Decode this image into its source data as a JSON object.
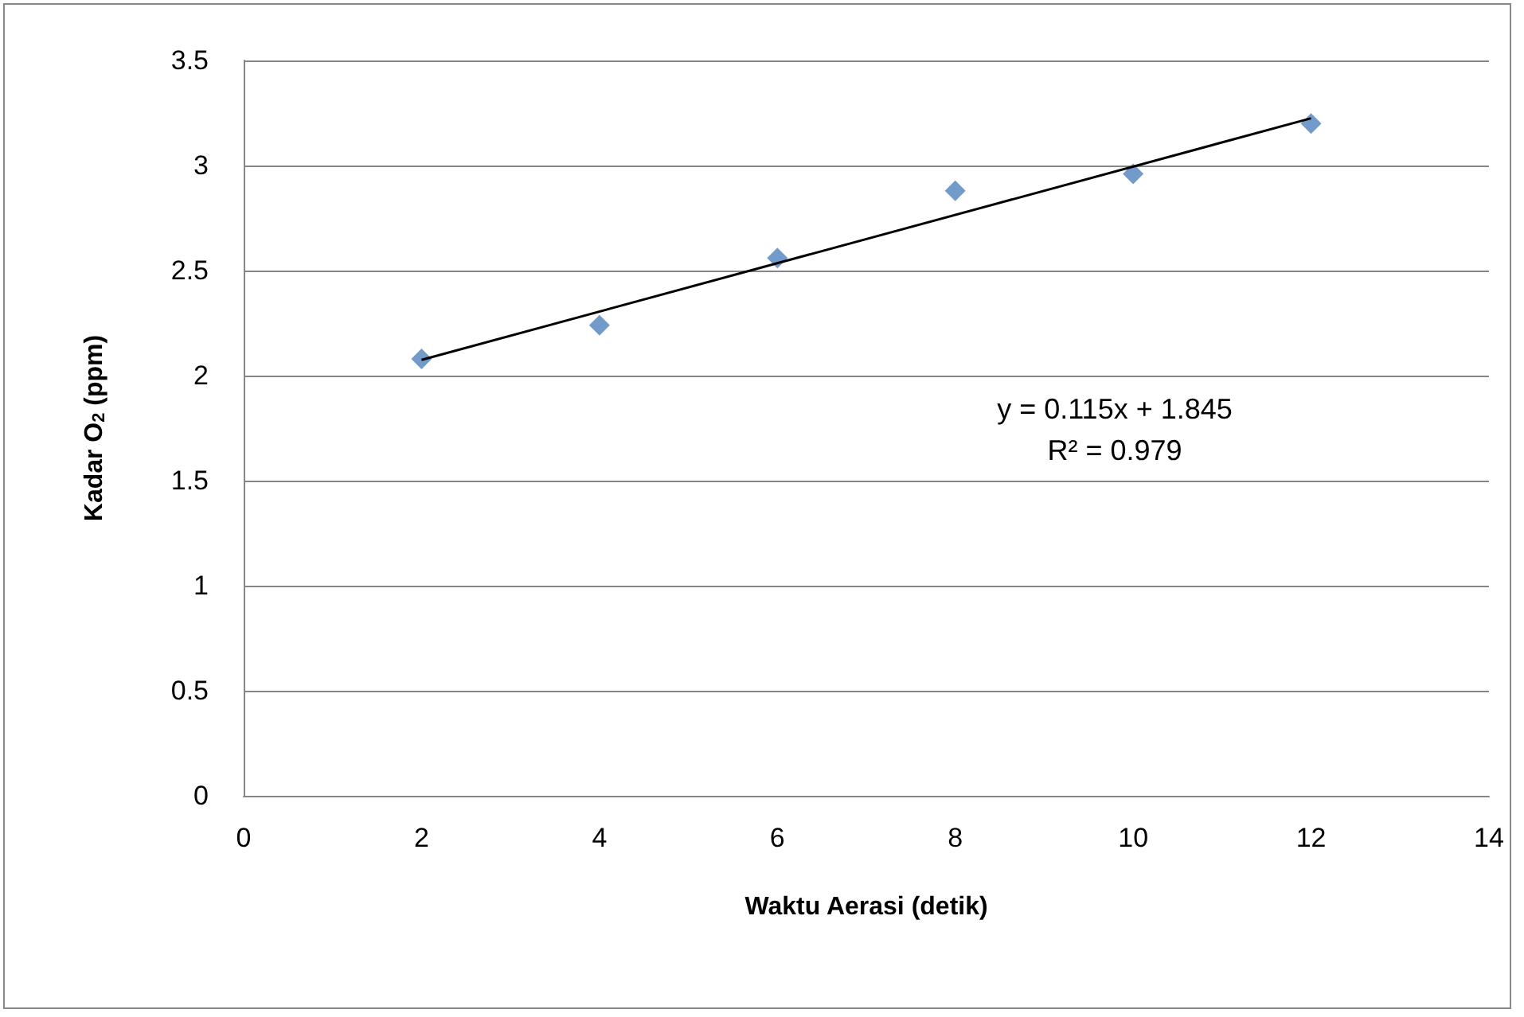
{
  "chart_data": {
    "type": "scatter",
    "xlabel": "Waktu Aerasi (detik)",
    "ylabel": "Kadar O$_{2}$ (ppm)",
    "x": [
      2,
      4,
      6,
      8,
      10,
      12
    ],
    "series": [
      {
        "color": "#4f81bd",
        "marker": "diamond",
        "values": [
          2.08,
          2.24,
          2.56,
          2.88,
          2.96,
          3.2
        ]
      },
      {
        "type": "line",
        "color": "#000000",
        "marker": "none",
        "x": [
          2,
          12
        ],
        "values": [
          2.075,
          3.225
        ]
      }
    ],
    "annotations": [
      "y = 0.115x + 1.845",
      "R² = 0.979"
    ],
    "xlim": [
      0,
      14
    ],
    "xticks": [
      0,
      2,
      4,
      6,
      8,
      10,
      12,
      14
    ],
    "ylim": [
      0,
      3.5
    ],
    "yticks": [
      0,
      0.5,
      1,
      1.5,
      2,
      2.5,
      3,
      3.5
    ],
    "grid": "y",
    "line_style": "solid"
  }
}
